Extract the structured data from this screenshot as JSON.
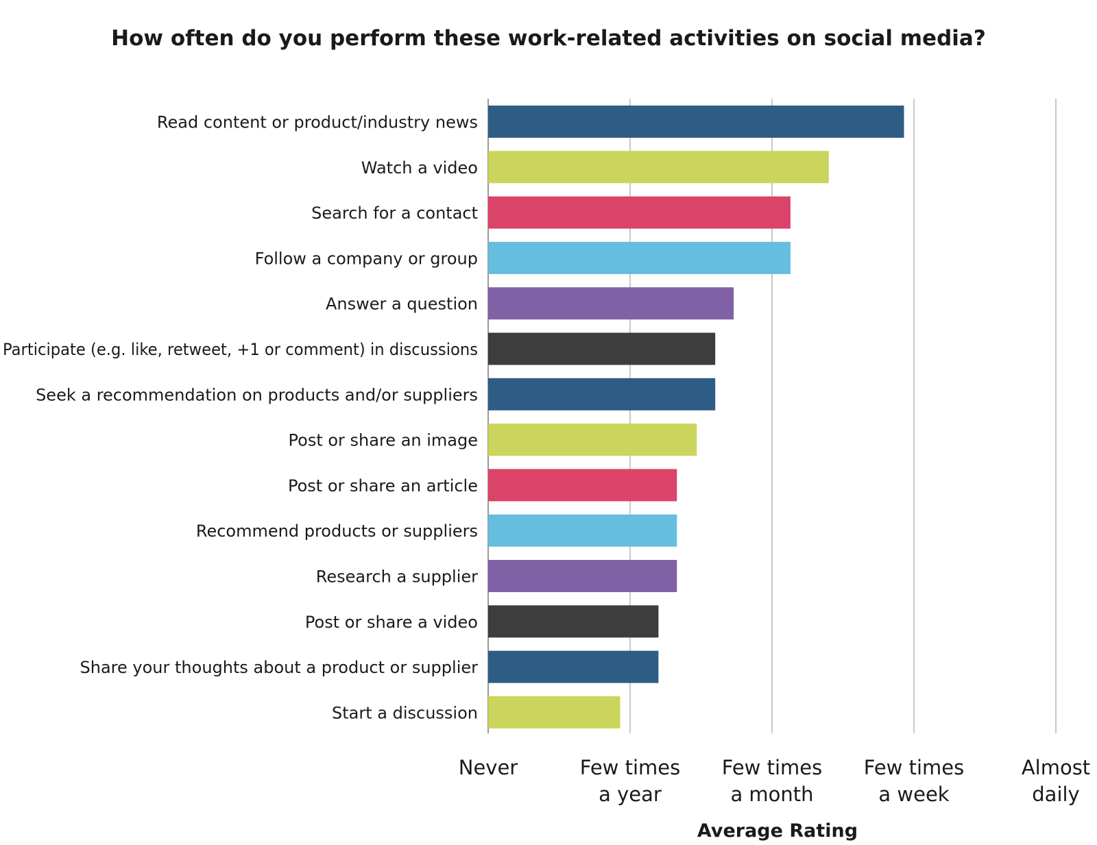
{
  "chart_data": {
    "type": "bar",
    "orientation": "horizontal",
    "title": "How often do you perform these work-related activities on social media?",
    "xlabel": "Average Rating",
    "ylabel": "",
    "xlim": [
      0,
      4
    ],
    "grid": true,
    "x_ticks": [
      {
        "value": 0,
        "lines": [
          "Never"
        ]
      },
      {
        "value": 1,
        "lines": [
          "Few times",
          "a year"
        ]
      },
      {
        "value": 2,
        "lines": [
          "Few times",
          "a month"
        ]
      },
      {
        "value": 3,
        "lines": [
          "Few times",
          "a week"
        ]
      },
      {
        "value": 4,
        "lines": [
          "Almost",
          "daily"
        ]
      }
    ],
    "categories": [
      "Read content or product/industry news",
      "Watch a video",
      "Search for a contact",
      "Follow a company or group",
      "Answer a question",
      "Participate (e.g. like, retweet, +1 or comment) in discussions",
      "Seek a recommendation on products and/or suppliers",
      "Post or share an image",
      "Post or share an article",
      "Recommend products or suppliers",
      "Research a supplier",
      "Post or share a video",
      "Share your thoughts about a product or supplier",
      "Start a discussion"
    ],
    "values": [
      2.93,
      2.4,
      2.13,
      2.13,
      1.73,
      1.6,
      1.6,
      1.47,
      1.33,
      1.33,
      1.33,
      1.2,
      1.2,
      0.93
    ],
    "colors": [
      "#2f5c84",
      "#cbd55b",
      "#db4368",
      "#65bde0",
      "#8161a6",
      "#3d3d3d",
      "#2f5c84",
      "#cbd55b",
      "#db4368",
      "#65bde0",
      "#8161a6",
      "#3d3d3d",
      "#2f5c84",
      "#cbd55b"
    ]
  }
}
